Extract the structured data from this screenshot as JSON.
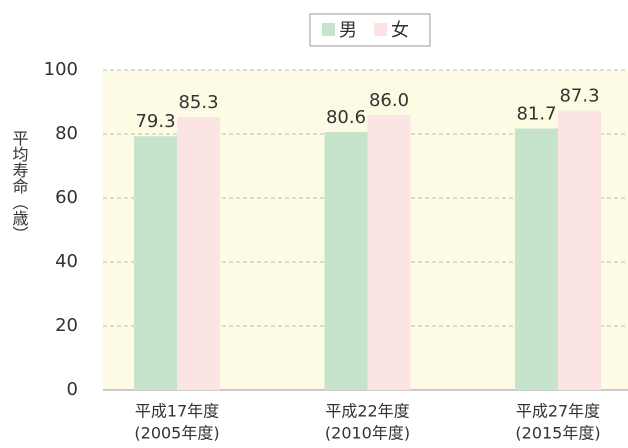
{
  "chart_data": {
    "type": "bar",
    "y_label": "平均寿命（歳）",
    "categories": [
      [
        "平成17年度",
        "(2005年度)"
      ],
      [
        "平成22年度",
        "(2010年度)"
      ],
      [
        "平成27年度",
        "(2015年度)"
      ]
    ],
    "series": [
      {
        "name": "男",
        "color": "#c6e4cb",
        "values": [
          79.3,
          80.6,
          81.7
        ],
        "value_labels": [
          "79.3",
          "80.6",
          "81.7"
        ]
      },
      {
        "name": "女",
        "color": "#fde4e4",
        "values": [
          85.3,
          86,
          87.3
        ],
        "value_labels": [
          "85.3",
          "86.0",
          "87.3"
        ]
      }
    ],
    "ylim": [
      0,
      100
    ],
    "yticks": [
      0,
      20,
      40,
      60,
      80,
      100
    ],
    "grid": true,
    "legend": "top"
  }
}
